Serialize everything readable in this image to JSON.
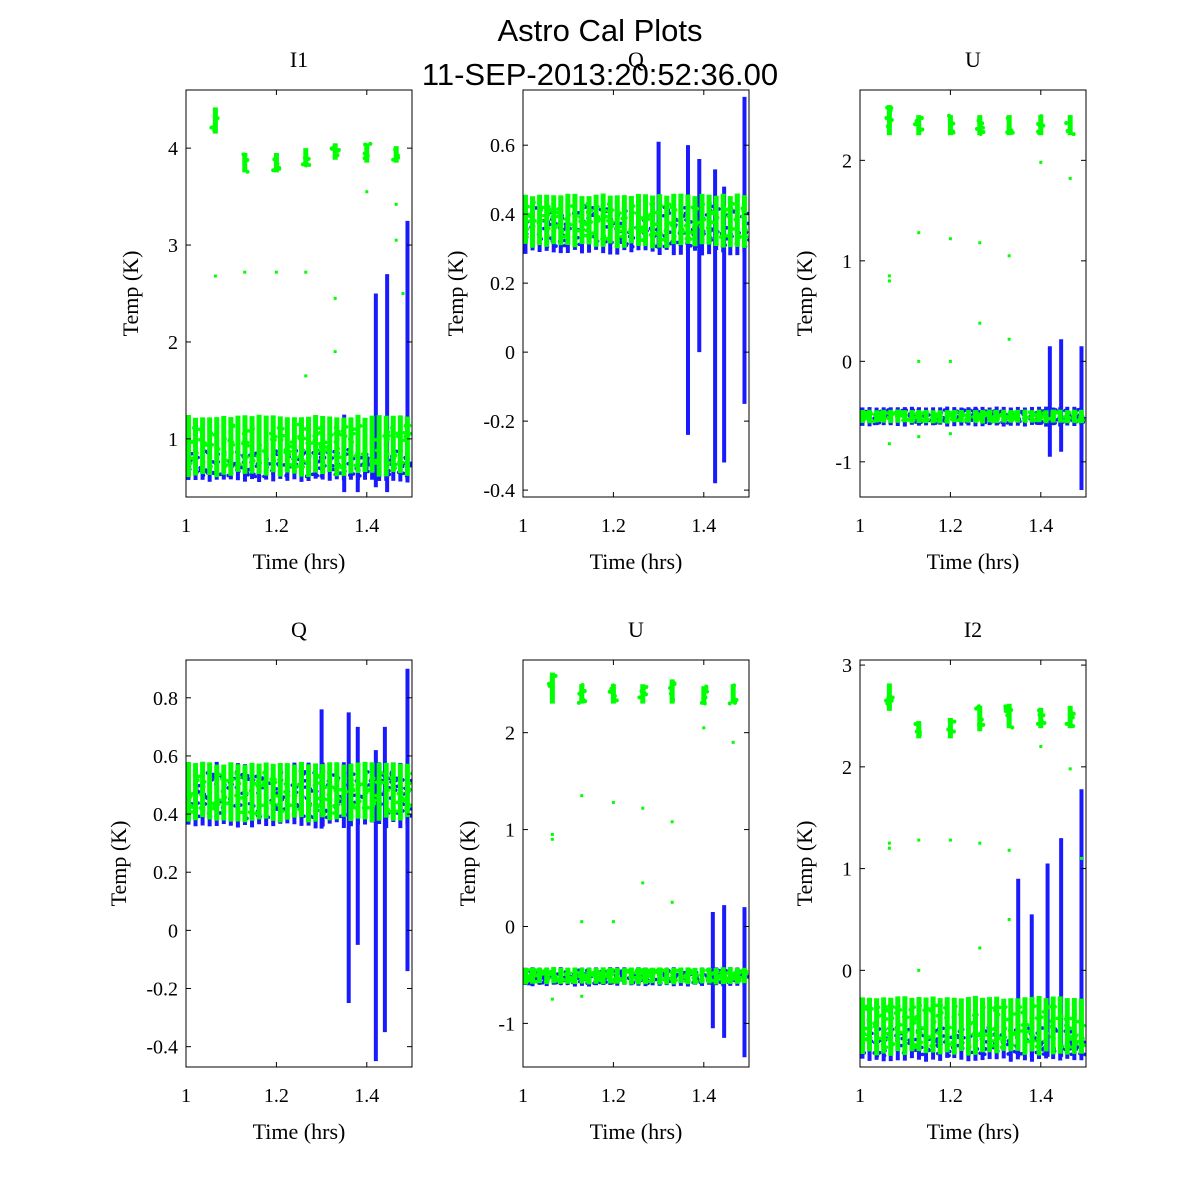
{
  "figure": {
    "title_line1": "Astro Cal Plots",
    "title_line2": "11-SEP-2013:20:52:36.00"
  },
  "colors": {
    "series_blue": "#1a1aff",
    "series_green": "#00ff00",
    "axes": "#000000"
  },
  "chart_data": [
    {
      "type": "scatter",
      "title": "I1",
      "xlabel": "Time (hrs)",
      "ylabel": "Temp (K)",
      "xlim": [
        1.0,
        1.5
      ],
      "ylim": [
        0.4,
        4.6
      ],
      "xticks": [
        "1",
        "1.2",
        "1.4"
      ],
      "yticks": [
        "1",
        "2",
        "3",
        "4"
      ],
      "series": [
        {
          "color": "blue",
          "baseline": [
            0.55,
            0.95
          ],
          "spikes": [
            [
              1.35,
              0.45,
              1.25
            ],
            [
              1.38,
              0.45,
              1.05
            ],
            [
              1.42,
              0.5,
              2.5
            ],
            [
              1.445,
              0.45,
              2.7
            ],
            [
              1.49,
              0.55,
              3.25
            ]
          ]
        },
        {
          "color": "green",
          "baseline": [
            0.6,
            1.25
          ],
          "clusters": [
            [
              1.065,
              4.15,
              4.42
            ],
            [
              1.13,
              3.75,
              3.95
            ],
            [
              1.2,
              3.75,
              3.95
            ],
            [
              1.265,
              3.82,
              4.0
            ],
            [
              1.33,
              3.88,
              4.05
            ],
            [
              1.4,
              3.85,
              4.05
            ],
            [
              1.465,
              3.85,
              4.02
            ]
          ],
          "outliers": [
            [
              1.065,
              2.68
            ],
            [
              1.13,
              2.72
            ],
            [
              1.2,
              2.72
            ],
            [
              1.265,
              2.72
            ],
            [
              1.33,
              2.45
            ],
            [
              1.4,
              3.55
            ],
            [
              1.465,
              3.42
            ],
            [
              1.465,
              3.05
            ],
            [
              1.33,
              1.9
            ],
            [
              1.265,
              1.65
            ],
            [
              1.48,
              2.5
            ]
          ]
        }
      ]
    },
    {
      "type": "scatter",
      "title": "Q",
      "xlabel": "Time (hrs)",
      "ylabel": "Temp (K)",
      "xlim": [
        1.0,
        1.5
      ],
      "ylim": [
        -0.42,
        0.76
      ],
      "xticks": [
        "1",
        "1.2",
        "1.4"
      ],
      "yticks": [
        "-0.4",
        "-0.2",
        "0",
        "0.2",
        "0.4",
        "0.6"
      ],
      "series": [
        {
          "color": "blue",
          "baseline": [
            0.28,
            0.45
          ],
          "spikes": [
            [
              1.3,
              0.3,
              0.61
            ],
            [
              1.365,
              -0.24,
              0.6
            ],
            [
              1.39,
              0.0,
              0.56
            ],
            [
              1.425,
              -0.38,
              0.53
            ],
            [
              1.445,
              -0.32,
              0.48
            ],
            [
              1.49,
              -0.15,
              0.74
            ]
          ]
        },
        {
          "color": "green",
          "baseline": [
            0.3,
            0.46
          ],
          "outliers": []
        }
      ]
    },
    {
      "type": "scatter",
      "title": "U",
      "xlabel": "Time (hrs)",
      "ylabel": "Temp (K)",
      "xlim": [
        1.0,
        1.5
      ],
      "ylim": [
        -1.35,
        2.7
      ],
      "xticks": [
        "1",
        "1.2",
        "1.4"
      ],
      "yticks": [
        "-1",
        "0",
        "1",
        "2"
      ],
      "series": [
        {
          "color": "blue",
          "baseline": [
            -0.65,
            -0.45
          ],
          "spikes": [
            [
              1.42,
              -0.95,
              0.15
            ],
            [
              1.445,
              -0.9,
              0.22
            ],
            [
              1.49,
              -1.28,
              0.15
            ]
          ]
        },
        {
          "color": "green",
          "baseline": [
            -0.62,
            -0.48
          ],
          "clusters": [
            [
              1.065,
              2.25,
              2.55
            ],
            [
              1.13,
              2.25,
              2.45
            ],
            [
              1.2,
              2.25,
              2.45
            ],
            [
              1.265,
              2.25,
              2.45
            ],
            [
              1.33,
              2.25,
              2.45
            ],
            [
              1.4,
              2.25,
              2.45
            ],
            [
              1.465,
              2.25,
              2.45
            ]
          ],
          "outliers": [
            [
              1.065,
              0.85
            ],
            [
              1.065,
              0.8
            ],
            [
              1.13,
              1.28
            ],
            [
              1.2,
              1.22
            ],
            [
              1.265,
              1.18
            ],
            [
              1.33,
              1.05
            ],
            [
              1.265,
              0.38
            ],
            [
              1.33,
              0.22
            ],
            [
              1.13,
              0.0
            ],
            [
              1.2,
              0.0
            ],
            [
              1.4,
              1.98
            ],
            [
              1.465,
              1.82
            ],
            [
              1.065,
              -0.82
            ],
            [
              1.13,
              -0.75
            ],
            [
              1.2,
              -0.72
            ]
          ]
        }
      ]
    },
    {
      "type": "scatter",
      "title": "Q",
      "xlabel": "Time (hrs)",
      "ylabel": "Temp (K)",
      "xlim": [
        1.0,
        1.5
      ],
      "ylim": [
        -0.47,
        0.93
      ],
      "xticks": [
        "1",
        "1.2",
        "1.4"
      ],
      "yticks": [
        "-0.4",
        "-0.2",
        "0",
        "0.2",
        "0.4",
        "0.6",
        "0.8"
      ],
      "series": [
        {
          "color": "blue",
          "baseline": [
            0.35,
            0.58
          ],
          "spikes": [
            [
              1.3,
              0.35,
              0.76
            ],
            [
              1.36,
              -0.25,
              0.75
            ],
            [
              1.38,
              -0.05,
              0.7
            ],
            [
              1.42,
              -0.45,
              0.62
            ],
            [
              1.44,
              -0.35,
              0.7
            ],
            [
              1.49,
              -0.14,
              0.9
            ]
          ]
        },
        {
          "color": "green",
          "baseline": [
            0.37,
            0.58
          ],
          "outliers": []
        }
      ]
    },
    {
      "type": "scatter",
      "title": "U",
      "xlabel": "Time (hrs)",
      "ylabel": "Temp (K)",
      "xlim": [
        1.0,
        1.5
      ],
      "ylim": [
        -1.45,
        2.75
      ],
      "xticks": [
        "1",
        "1.2",
        "1.4"
      ],
      "yticks": [
        "-1",
        "0",
        "1",
        "2"
      ],
      "series": [
        {
          "color": "blue",
          "baseline": [
            -0.62,
            -0.42
          ],
          "spikes": [
            [
              1.42,
              -1.05,
              0.15
            ],
            [
              1.445,
              -1.15,
              0.22
            ],
            [
              1.49,
              -1.35,
              0.2
            ]
          ]
        },
        {
          "color": "green",
          "baseline": [
            -0.6,
            -0.42
          ],
          "clusters": [
            [
              1.065,
              2.3,
              2.62
            ],
            [
              1.13,
              2.3,
              2.5
            ],
            [
              1.2,
              2.3,
              2.5
            ],
            [
              1.265,
              2.3,
              2.5
            ],
            [
              1.33,
              2.3,
              2.55
            ],
            [
              1.4,
              2.3,
              2.48
            ],
            [
              1.465,
              2.3,
              2.5
            ]
          ],
          "outliers": [
            [
              1.065,
              0.95
            ],
            [
              1.065,
              0.9
            ],
            [
              1.13,
              1.35
            ],
            [
              1.2,
              1.28
            ],
            [
              1.265,
              1.22
            ],
            [
              1.33,
              1.08
            ],
            [
              1.265,
              0.45
            ],
            [
              1.33,
              0.25
            ],
            [
              1.13,
              0.05
            ],
            [
              1.2,
              0.05
            ],
            [
              1.4,
              2.05
            ],
            [
              1.465,
              1.9
            ],
            [
              1.065,
              -0.75
            ],
            [
              1.13,
              -0.72
            ]
          ]
        }
      ]
    },
    {
      "type": "scatter",
      "title": "I2",
      "xlabel": "Time (hrs)",
      "ylabel": "Temp (K)",
      "xlim": [
        1.0,
        1.5
      ],
      "ylim": [
        -0.95,
        3.05
      ],
      "xticks": [
        "1",
        "1.2",
        "1.4"
      ],
      "yticks": [
        "0",
        "1",
        "2",
        "3"
      ],
      "series": [
        {
          "color": "blue",
          "baseline": [
            -0.9,
            -0.5
          ],
          "spikes": [
            [
              1.35,
              -0.85,
              0.9
            ],
            [
              1.38,
              -0.85,
              0.55
            ],
            [
              1.415,
              -0.85,
              1.05
            ],
            [
              1.445,
              -0.85,
              1.3
            ],
            [
              1.49,
              -0.8,
              1.78
            ]
          ]
        },
        {
          "color": "green",
          "baseline": [
            -0.85,
            -0.25
          ],
          "clusters": [
            [
              1.065,
              2.55,
              2.82
            ],
            [
              1.13,
              2.28,
              2.45
            ],
            [
              1.2,
              2.28,
              2.48
            ],
            [
              1.265,
              2.35,
              2.6
            ],
            [
              1.33,
              2.38,
              2.62
            ],
            [
              1.4,
              2.38,
              2.58
            ],
            [
              1.465,
              2.38,
              2.6
            ]
          ],
          "outliers": [
            [
              1.065,
              1.25
            ],
            [
              1.065,
              1.2
            ],
            [
              1.13,
              1.28
            ],
            [
              1.2,
              1.28
            ],
            [
              1.265,
              1.25
            ],
            [
              1.33,
              1.18
            ],
            [
              1.4,
              2.2
            ],
            [
              1.465,
              1.98
            ],
            [
              1.13,
              0.0
            ],
            [
              1.265,
              0.22
            ],
            [
              1.33,
              0.5
            ],
            [
              1.49,
              1.1
            ]
          ]
        }
      ]
    }
  ]
}
